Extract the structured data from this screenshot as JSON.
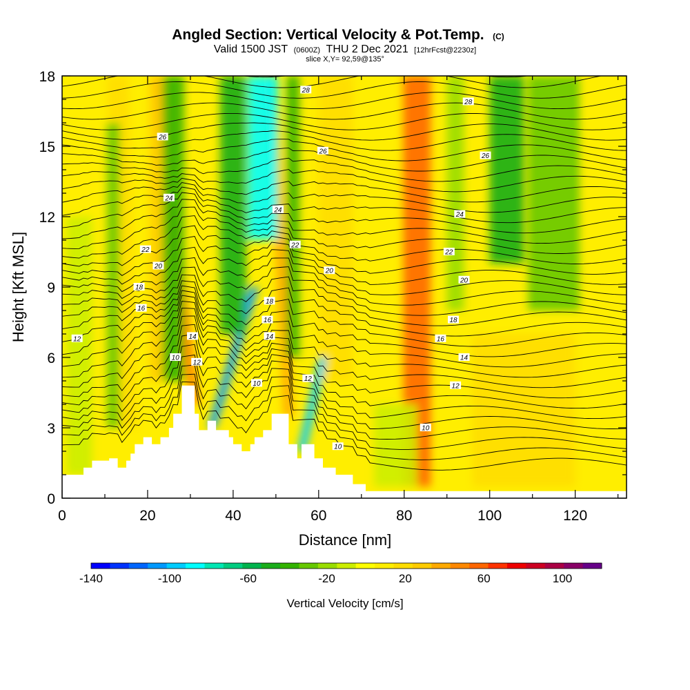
{
  "titles": {
    "line1_main": "Angled Section: Vertical Velocity & Pot.Temp.",
    "line1_suffix": "(C)",
    "line2_a": "Valid 1500 JST",
    "line2_b": "(0600Z)",
    "line2_c": "THU 2 Dec 2021",
    "line2_d": "[12hrFcst@2230z]",
    "line3": "slice X,Y= 92,59@135°"
  },
  "chart_data": {
    "type": "heatmap",
    "xlabel": "Distance [nm]",
    "ylabel": "Height [Kft MSL]",
    "xlim": [
      0,
      132
    ],
    "ylim": [
      0,
      18
    ],
    "xticks": [
      0,
      20,
      40,
      60,
      80,
      100,
      120
    ],
    "yticks": [
      0,
      3,
      6,
      9,
      12,
      15,
      18
    ],
    "colorbar": {
      "label": "Vertical Velocity [cm/s]",
      "range": [
        -140,
        120
      ],
      "step": 10,
      "tick_values": [
        -140,
        -100,
        -60,
        -20,
        20,
        60,
        100
      ],
      "colors": [
        "#0000ff",
        "#0033ff",
        "#0066ff",
        "#0099ff",
        "#00ccff",
        "#00ffff",
        "#00e6b3",
        "#00cc80",
        "#00b34d",
        "#1aad1a",
        "#33b300",
        "#66c800",
        "#99dd00",
        "#ccee00",
        "#ffff00",
        "#ffee00",
        "#ffdd00",
        "#ffcc00",
        "#ffaa00",
        "#ff8800",
        "#ff6600",
        "#ff3300",
        "#ee0000",
        "#cc0022",
        "#aa0044",
        "#880066",
        "#660088"
      ]
    },
    "theta_contour_labels": [
      {
        "label": "12",
        "x": 3.5,
        "y": 6.8
      },
      {
        "label": "10",
        "x": 26.5,
        "y": 6.0
      },
      {
        "label": "14",
        "x": 30.5,
        "y": 6.9
      },
      {
        "label": "12",
        "x": 31.5,
        "y": 5.8
      },
      {
        "label": "16",
        "x": 18.5,
        "y": 8.1
      },
      {
        "label": "18",
        "x": 18.0,
        "y": 9.0
      },
      {
        "label": "20",
        "x": 22.5,
        "y": 9.9
      },
      {
        "label": "22",
        "x": 19.5,
        "y": 10.6
      },
      {
        "label": "24",
        "x": 25.0,
        "y": 12.8
      },
      {
        "label": "26",
        "x": 23.5,
        "y": 15.4
      },
      {
        "label": "10",
        "x": 45.5,
        "y": 4.9
      },
      {
        "label": "16",
        "x": 48.0,
        "y": 7.6
      },
      {
        "label": "14",
        "x": 48.5,
        "y": 6.9
      },
      {
        "label": "18",
        "x": 48.5,
        "y": 8.4
      },
      {
        "label": "24",
        "x": 50.5,
        "y": 12.3
      },
      {
        "label": "22",
        "x": 54.5,
        "y": 10.8
      },
      {
        "label": "20",
        "x": 62.5,
        "y": 9.7
      },
      {
        "label": "12",
        "x": 57.5,
        "y": 5.1
      },
      {
        "label": "10",
        "x": 64.5,
        "y": 2.2
      },
      {
        "label": "28",
        "x": 57.0,
        "y": 17.4
      },
      {
        "label": "26",
        "x": 61.0,
        "y": 14.8
      },
      {
        "label": "28",
        "x": 95.0,
        "y": 16.9
      },
      {
        "label": "26",
        "x": 99.0,
        "y": 14.6
      },
      {
        "label": "24",
        "x": 93.0,
        "y": 12.1
      },
      {
        "label": "22",
        "x": 90.5,
        "y": 10.5
      },
      {
        "label": "20",
        "x": 94.0,
        "y": 9.3
      },
      {
        "label": "18",
        "x": 91.5,
        "y": 7.6
      },
      {
        "label": "16",
        "x": 88.5,
        "y": 6.8
      },
      {
        "label": "14",
        "x": 94.0,
        "y": 6.0
      },
      {
        "label": "12",
        "x": 92.0,
        "y": 4.8
      },
      {
        "label": "10",
        "x": 85.0,
        "y": 3.0
      }
    ],
    "terrain": [
      [
        0,
        1.0
      ],
      [
        5,
        1.0
      ],
      [
        5,
        1.3
      ],
      [
        7,
        1.3
      ],
      [
        7,
        1.6
      ],
      [
        11,
        1.6
      ],
      [
        11,
        1.7
      ],
      [
        13,
        1.7
      ],
      [
        13,
        1.3
      ],
      [
        15,
        1.3
      ],
      [
        15,
        1.6
      ],
      [
        16,
        1.6
      ],
      [
        16,
        1.9
      ],
      [
        17,
        1.9
      ],
      [
        17,
        2.3
      ],
      [
        19,
        2.3
      ],
      [
        19,
        2.6
      ],
      [
        21,
        2.6
      ],
      [
        21,
        2.3
      ],
      [
        23,
        2.3
      ],
      [
        23,
        2.6
      ],
      [
        25,
        2.6
      ],
      [
        25,
        3.0
      ],
      [
        26,
        3.0
      ],
      [
        26,
        3.6
      ],
      [
        28,
        3.6
      ],
      [
        28,
        4.8
      ],
      [
        31,
        4.8
      ],
      [
        31,
        3.6
      ],
      [
        32,
        3.6
      ],
      [
        32,
        2.9
      ],
      [
        34,
        2.9
      ],
      [
        34,
        3.3
      ],
      [
        36,
        3.3
      ],
      [
        36,
        2.9
      ],
      [
        39,
        2.9
      ],
      [
        39,
        2.6
      ],
      [
        40,
        2.6
      ],
      [
        40,
        2.3
      ],
      [
        42,
        2.3
      ],
      [
        42,
        2.0
      ],
      [
        44,
        2.0
      ],
      [
        44,
        2.3
      ],
      [
        45,
        2.3
      ],
      [
        45,
        2.6
      ],
      [
        47,
        2.6
      ],
      [
        47,
        2.9
      ],
      [
        49,
        2.9
      ],
      [
        49,
        3.6
      ],
      [
        53,
        3.6
      ],
      [
        53,
        2.3
      ],
      [
        55,
        2.3
      ],
      [
        55,
        1.7
      ],
      [
        56,
        1.7
      ],
      [
        56,
        2.3
      ],
      [
        59,
        2.3
      ],
      [
        59,
        1.7
      ],
      [
        61,
        1.7
      ],
      [
        61,
        1.3
      ],
      [
        64,
        1.3
      ],
      [
        64,
        1.0
      ],
      [
        68,
        1.0
      ],
      [
        68,
        0.6
      ],
      [
        71,
        0.6
      ],
      [
        71,
        0.3
      ],
      [
        132,
        0.3
      ],
      [
        132,
        0
      ],
      [
        0,
        0
      ]
    ],
    "thermal_features": [
      {
        "x": 31,
        "w": 1.2,
        "base": 4.0,
        "top": 18,
        "lean": -9,
        "v": 45
      },
      {
        "x": 53,
        "w": 1.2,
        "base": 3.5,
        "top": 18,
        "lean": -4,
        "v": 40
      },
      {
        "x": 83,
        "w": 3.2,
        "base": 0.5,
        "top": 18,
        "lean": 0,
        "v": 60
      },
      {
        "x": 23,
        "w": 2.5,
        "base": 5.0,
        "top": 18,
        "lean": 0,
        "v": 25
      },
      {
        "x": 15,
        "w": 2.5,
        "base": 3.0,
        "top": 18,
        "lean": -2,
        "v": 20
      },
      {
        "x": 64,
        "w": 4.0,
        "base": 5.0,
        "top": 18,
        "lean": 0,
        "v": 15
      },
      {
        "x": 35,
        "w": 1.0,
        "base": 3.0,
        "top": 9,
        "lean": 10,
        "v": -110
      },
      {
        "x": 56,
        "w": 1.0,
        "base": 2.0,
        "top": 6,
        "lean": 5,
        "v": -100
      },
      {
        "x": 47,
        "w": 3.5,
        "base": 11,
        "top": 18,
        "lean": 0,
        "v": -90
      },
      {
        "x": 26,
        "w": 2.5,
        "base": 5,
        "top": 18,
        "lean": 0,
        "v": -45
      },
      {
        "x": 40,
        "w": 3.0,
        "base": 7,
        "top": 18,
        "lean": 0,
        "v": -50
      },
      {
        "x": 54,
        "w": 1.5,
        "base": 6,
        "top": 18,
        "lean": 0,
        "v": -45
      },
      {
        "x": 104,
        "w": 4.0,
        "base": 10,
        "top": 18,
        "lean": 0,
        "v": -50
      },
      {
        "x": 115,
        "w": 6.0,
        "base": 8,
        "top": 18,
        "lean": 0,
        "v": -35
      },
      {
        "x": 12,
        "w": 1.5,
        "base": 3,
        "top": 16,
        "lean": 0,
        "v": -30
      },
      {
        "x": 92,
        "w": 2.0,
        "base": 8,
        "top": 18,
        "lean": 0,
        "v": -25
      },
      {
        "x": 108,
        "w": 12,
        "base": 0.5,
        "top": 7,
        "lean": 0,
        "v": 20
      },
      {
        "x": 78,
        "w": 5.0,
        "base": 0.5,
        "top": 4,
        "lean": 0,
        "v": -12
      },
      {
        "x": 4,
        "w": 3.0,
        "base": 1,
        "top": 12,
        "lean": 0,
        "v": -10
      }
    ]
  }
}
